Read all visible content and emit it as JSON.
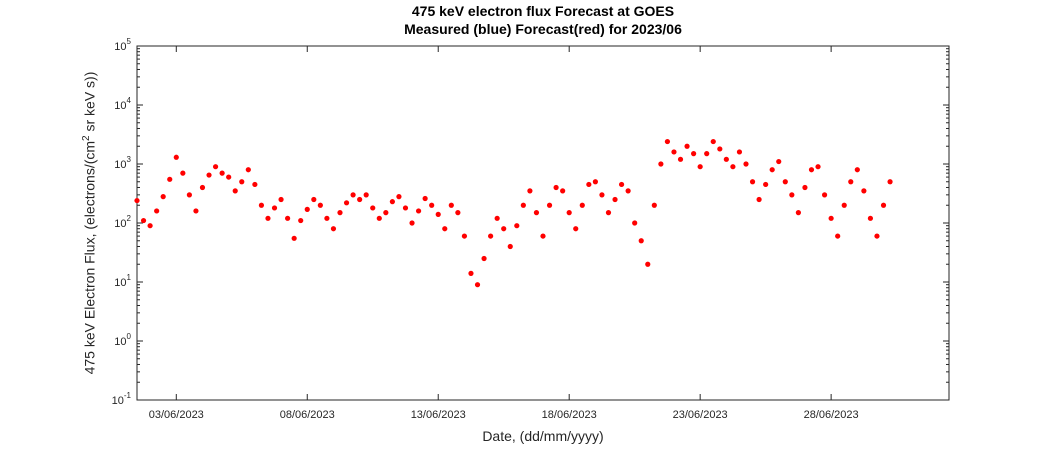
{
  "chart_data": {
    "type": "scatter",
    "title_line1": "475 keV electron flux Forecast at GOES",
    "title_line2": "Measured (blue) Forecast(red) for 2023/06",
    "xlabel": "Date, (dd/mm/yyyy)",
    "ylabel_prefix": "475 keV Electron Flux, (electrons/(cm",
    "ylabel_sup": "2",
    "ylabel_suffix": " sr keV s))",
    "yscale": "log",
    "ylim": [
      0.1,
      100000
    ],
    "xlim": [
      "2023-06-01 12:00",
      "2023-07-02 12:00"
    ],
    "grid": false,
    "x_ticks": [
      "03/06/2023",
      "08/06/2023",
      "13/06/2023",
      "18/06/2023",
      "23/06/2023",
      "28/06/2023"
    ],
    "y_ticks": [
      {
        "value": 0.1,
        "base": "10",
        "exp": "-1"
      },
      {
        "value": 1,
        "base": "10",
        "exp": "0"
      },
      {
        "value": 10,
        "base": "10",
        "exp": "1"
      },
      {
        "value": 100,
        "base": "10",
        "exp": "2"
      },
      {
        "value": 1000,
        "base": "10",
        "exp": "3"
      },
      {
        "value": 10000,
        "base": "10",
        "exp": "4"
      },
      {
        "value": 100000,
        "base": "10",
        "exp": "5"
      }
    ],
    "series": [
      {
        "color": "#ff0000",
        "marker": "filled-circle",
        "description": "forecast",
        "points": [
          [
            "2023-06-01 12:00",
            240
          ],
          [
            "2023-06-01 18:00",
            110
          ],
          [
            "2023-06-02 00:00",
            90
          ],
          [
            "2023-06-02 06:00",
            160
          ],
          [
            "2023-06-02 12:00",
            280
          ],
          [
            "2023-06-02 18:00",
            550
          ],
          [
            "2023-06-03 00:00",
            1300
          ],
          [
            "2023-06-03 06:00",
            700
          ],
          [
            "2023-06-03 12:00",
            300
          ],
          [
            "2023-06-03 18:00",
            160
          ],
          [
            "2023-06-04 00:00",
            400
          ],
          [
            "2023-06-04 06:00",
            650
          ],
          [
            "2023-06-04 12:00",
            900
          ],
          [
            "2023-06-04 18:00",
            700
          ],
          [
            "2023-06-05 00:00",
            600
          ],
          [
            "2023-06-05 06:00",
            350
          ],
          [
            "2023-06-05 12:00",
            500
          ],
          [
            "2023-06-05 18:00",
            800
          ],
          [
            "2023-06-06 00:00",
            450
          ],
          [
            "2023-06-06 06:00",
            200
          ],
          [
            "2023-06-06 12:00",
            120
          ],
          [
            "2023-06-06 18:00",
            180
          ],
          [
            "2023-06-07 00:00",
            250
          ],
          [
            "2023-06-07 06:00",
            120
          ],
          [
            "2023-06-07 12:00",
            55
          ],
          [
            "2023-06-07 18:00",
            110
          ],
          [
            "2023-06-08 00:00",
            170
          ],
          [
            "2023-06-08 06:00",
            250
          ],
          [
            "2023-06-08 12:00",
            200
          ],
          [
            "2023-06-08 18:00",
            120
          ],
          [
            "2023-06-09 00:00",
            80
          ],
          [
            "2023-06-09 06:00",
            150
          ],
          [
            "2023-06-09 12:00",
            220
          ],
          [
            "2023-06-09 18:00",
            300
          ],
          [
            "2023-06-10 00:00",
            250
          ],
          [
            "2023-06-10 06:00",
            300
          ],
          [
            "2023-06-10 12:00",
            180
          ],
          [
            "2023-06-10 18:00",
            120
          ],
          [
            "2023-06-11 00:00",
            150
          ],
          [
            "2023-06-11 06:00",
            230
          ],
          [
            "2023-06-11 12:00",
            280
          ],
          [
            "2023-06-11 18:00",
            180
          ],
          [
            "2023-06-12 00:00",
            100
          ],
          [
            "2023-06-12 06:00",
            160
          ],
          [
            "2023-06-12 12:00",
            260
          ],
          [
            "2023-06-12 18:00",
            200
          ],
          [
            "2023-06-13 00:00",
            140
          ],
          [
            "2023-06-13 06:00",
            80
          ],
          [
            "2023-06-13 12:00",
            200
          ],
          [
            "2023-06-13 18:00",
            150
          ],
          [
            "2023-06-14 00:00",
            60
          ],
          [
            "2023-06-14 06:00",
            14
          ],
          [
            "2023-06-14 12:00",
            9
          ],
          [
            "2023-06-14 18:00",
            25
          ],
          [
            "2023-06-15 00:00",
            60
          ],
          [
            "2023-06-15 06:00",
            120
          ],
          [
            "2023-06-15 12:00",
            80
          ],
          [
            "2023-06-15 18:00",
            40
          ],
          [
            "2023-06-16 00:00",
            90
          ],
          [
            "2023-06-16 06:00",
            200
          ],
          [
            "2023-06-16 12:00",
            350
          ],
          [
            "2023-06-16 18:00",
            150
          ],
          [
            "2023-06-17 00:00",
            60
          ],
          [
            "2023-06-17 06:00",
            200
          ],
          [
            "2023-06-17 12:00",
            400
          ],
          [
            "2023-06-17 18:00",
            350
          ],
          [
            "2023-06-18 00:00",
            150
          ],
          [
            "2023-06-18 06:00",
            80
          ],
          [
            "2023-06-18 12:00",
            200
          ],
          [
            "2023-06-18 18:00",
            450
          ],
          [
            "2023-06-19 00:00",
            500
          ],
          [
            "2023-06-19 06:00",
            300
          ],
          [
            "2023-06-19 12:00",
            150
          ],
          [
            "2023-06-19 18:00",
            250
          ],
          [
            "2023-06-20 00:00",
            450
          ],
          [
            "2023-06-20 06:00",
            350
          ],
          [
            "2023-06-20 12:00",
            100
          ],
          [
            "2023-06-20 18:00",
            50
          ],
          [
            "2023-06-21 00:00",
            20
          ],
          [
            "2023-06-21 06:00",
            200
          ],
          [
            "2023-06-21 12:00",
            1000
          ],
          [
            "2023-06-21 18:00",
            2400
          ],
          [
            "2023-06-22 00:00",
            1600
          ],
          [
            "2023-06-22 06:00",
            1200
          ],
          [
            "2023-06-22 12:00",
            2000
          ],
          [
            "2023-06-22 18:00",
            1500
          ],
          [
            "2023-06-23 00:00",
            900
          ],
          [
            "2023-06-23 06:00",
            1500
          ],
          [
            "2023-06-23 12:00",
            2400
          ],
          [
            "2023-06-23 18:00",
            1800
          ],
          [
            "2023-06-24 00:00",
            1200
          ],
          [
            "2023-06-24 06:00",
            900
          ],
          [
            "2023-06-24 12:00",
            1600
          ],
          [
            "2023-06-24 18:00",
            1000
          ],
          [
            "2023-06-25 00:00",
            500
          ],
          [
            "2023-06-25 06:00",
            250
          ],
          [
            "2023-06-25 12:00",
            450
          ],
          [
            "2023-06-25 18:00",
            800
          ],
          [
            "2023-06-26 00:00",
            1100
          ],
          [
            "2023-06-26 06:00",
            500
          ],
          [
            "2023-06-26 12:00",
            300
          ],
          [
            "2023-06-26 18:00",
            150
          ],
          [
            "2023-06-27 00:00",
            400
          ],
          [
            "2023-06-27 06:00",
            800
          ],
          [
            "2023-06-27 12:00",
            900
          ],
          [
            "2023-06-27 18:00",
            300
          ],
          [
            "2023-06-28 00:00",
            120
          ],
          [
            "2023-06-28 06:00",
            60
          ],
          [
            "2023-06-28 12:00",
            200
          ],
          [
            "2023-06-28 18:00",
            500
          ],
          [
            "2023-06-29 00:00",
            800
          ],
          [
            "2023-06-29 06:00",
            350
          ],
          [
            "2023-06-29 12:00",
            120
          ],
          [
            "2023-06-29 18:00",
            60
          ],
          [
            "2023-06-30 00:00",
            200
          ],
          [
            "2023-06-30 06:00",
            500
          ]
        ]
      }
    ]
  }
}
